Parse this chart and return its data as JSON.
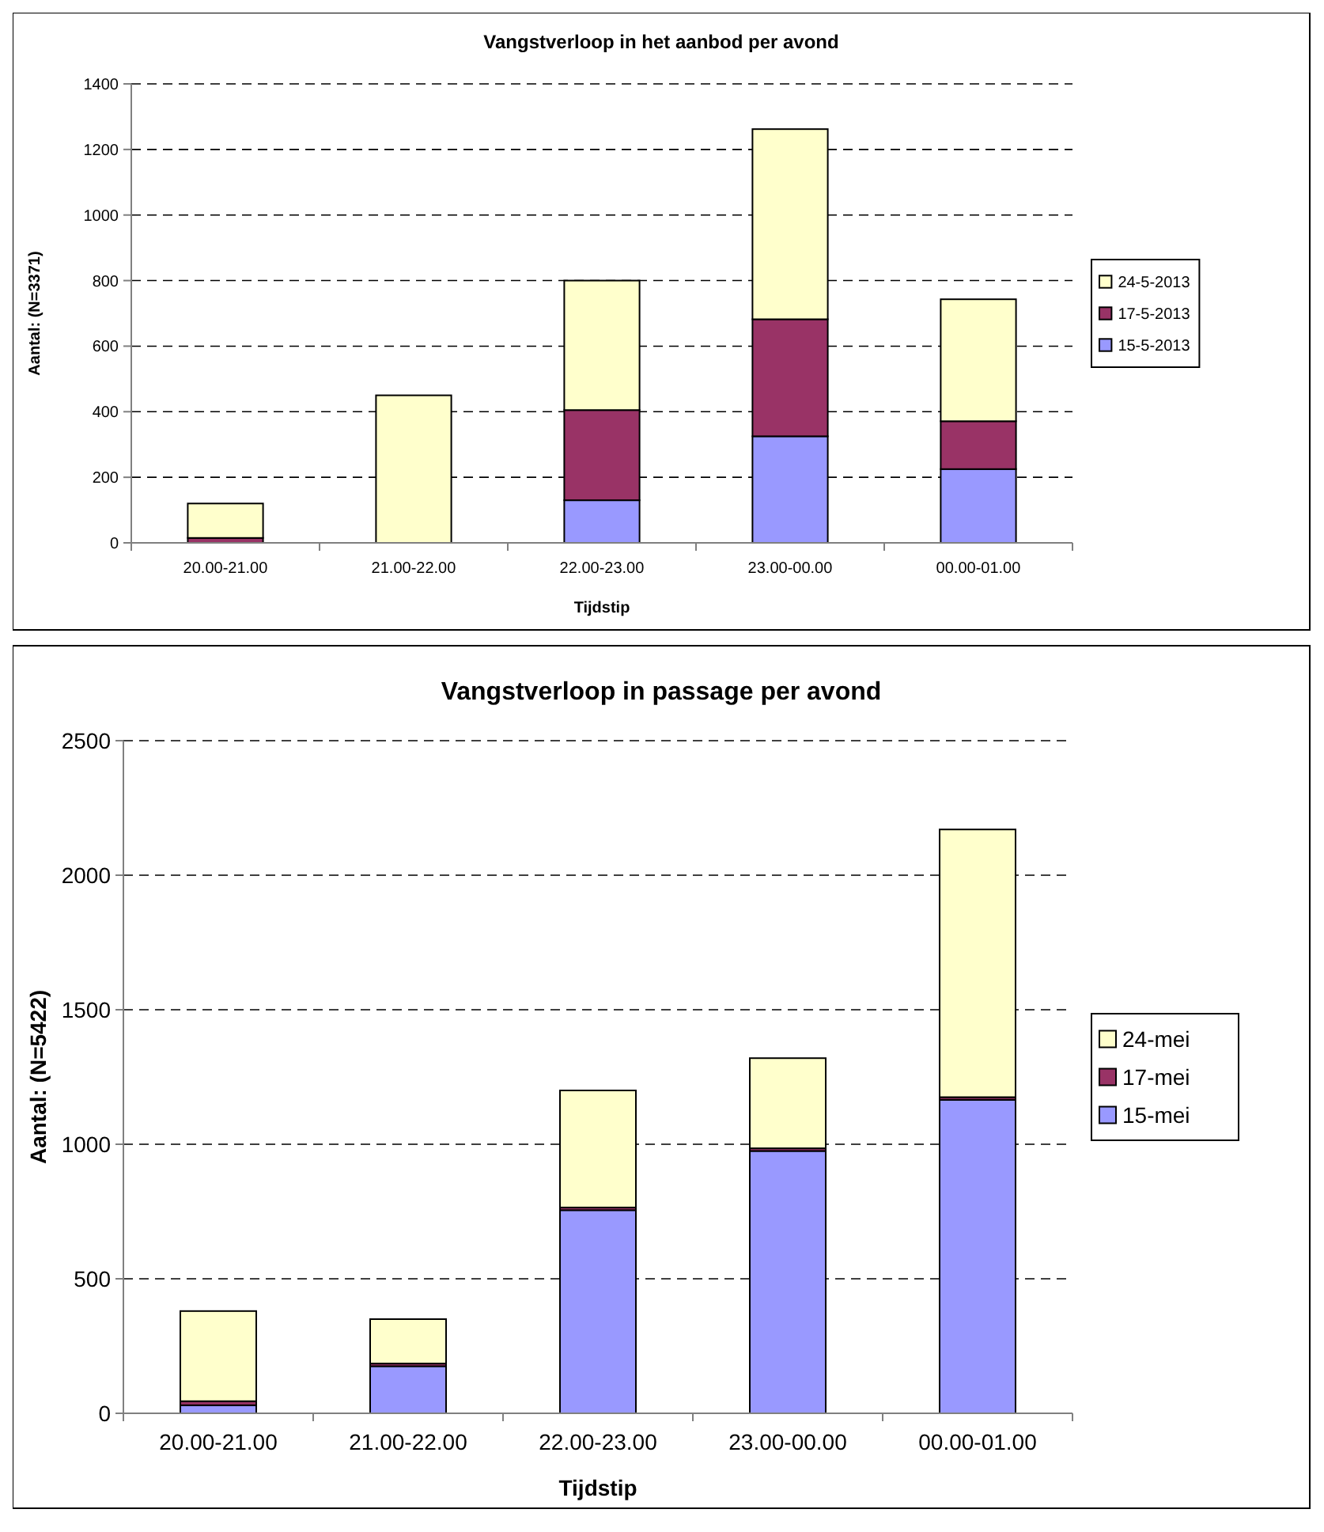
{
  "chart_data": [
    {
      "type": "bar",
      "title": "Vangstverloop in het aanbod per avond",
      "xlabel": "Tijdstip",
      "ylabel": "Aantal: (N=3371)",
      "categories": [
        "20.00-21.00",
        "21.00-22.00",
        "22.00-23.00",
        "23.00-00.00",
        "00.00-01.00"
      ],
      "stacked": true,
      "series": [
        {
          "name": "15-5-2013",
          "color": "#9999ff",
          "values": [
            0,
            0,
            130,
            325,
            225
          ]
        },
        {
          "name": "17-5-2013",
          "color": "#993366",
          "values": [
            15,
            null,
            275,
            357,
            146
          ]
        },
        {
          "name": "24-5-2013",
          "color": "#ffffcc",
          "values": [
            105,
            450,
            395,
            580,
            372
          ]
        }
      ],
      "ylim": [
        0,
        1400
      ],
      "yticks": [
        0,
        200,
        400,
        600,
        800,
        1000,
        1200,
        1400
      ],
      "grid": "y",
      "line_style": "dashed",
      "legend": "right"
    },
    {
      "type": "bar",
      "title": "Vangstverloop in passage per avond",
      "xlabel": "Tijdstip",
      "ylabel": "Aantal: (N=5422)",
      "categories": [
        "20.00-21.00",
        "21.00-22.00",
        "22.00-23.00",
        "23.00-00.00",
        "00.00-01.00"
      ],
      "stacked": true,
      "series": [
        {
          "name": "15-mei",
          "color": "#9999ff",
          "values": [
            30,
            175,
            755,
            975,
            1165
          ]
        },
        {
          "name": "17-mei",
          "color": "#993366",
          "values": [
            15,
            10,
            10,
            10,
            10
          ]
        },
        {
          "name": "24-mei",
          "color": "#ffffcc",
          "values": [
            335,
            165,
            435,
            335,
            995
          ]
        }
      ],
      "ylim": [
        0,
        2500
      ],
      "yticks": [
        0,
        500,
        1000,
        1500,
        2000,
        2500
      ],
      "grid": "y",
      "line_style": "dashed",
      "legend": "right"
    }
  ]
}
